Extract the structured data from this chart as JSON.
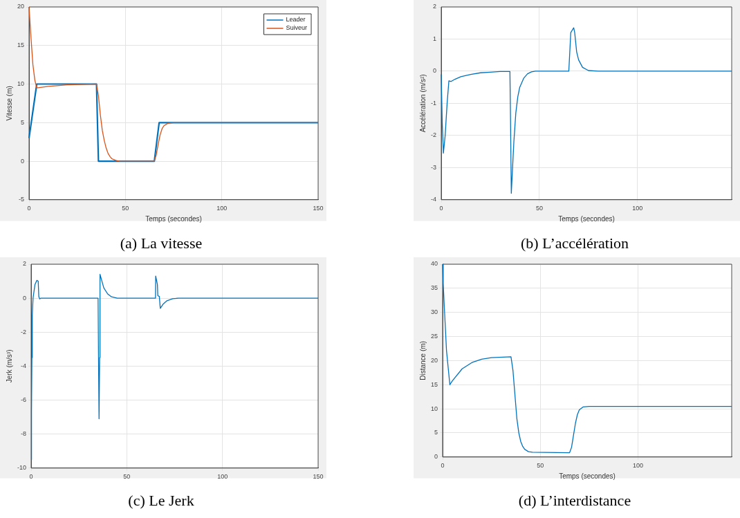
{
  "chart_data": [
    {
      "type": "line",
      "title": "(a) La vitesse",
      "xlabel": "Temps (secondes)",
      "ylabel": "Vitesse (m)",
      "xlim": [
        0,
        150
      ],
      "xticks": [
        0,
        50,
        100,
        150
      ],
      "ylim": [
        -5,
        20
      ],
      "yticks": [
        -5,
        0,
        5,
        10,
        15,
        20
      ],
      "grid": true,
      "legend": "top right",
      "series": [
        {
          "name": "Leader",
          "color": "#0072bd",
          "x": [
            0,
            4,
            35,
            36,
            45,
            65,
            67.5,
            150
          ],
          "values": [
            3,
            10,
            10,
            0,
            0,
            0,
            5,
            5
          ]
        },
        {
          "name": "Suiveur",
          "color": "#d95319",
          "x": [
            0,
            1,
            2,
            3,
            4,
            10,
            20,
            35,
            36,
            37,
            38,
            39,
            40,
            41,
            42,
            43,
            45,
            47,
            65,
            66,
            67,
            68,
            69,
            70,
            72,
            75,
            150
          ],
          "values": [
            20,
            16,
            12.5,
            10.5,
            9.5,
            9.7,
            9.9,
            10,
            8.5,
            6,
            4,
            2.7,
            1.7,
            1,
            0.6,
            0.3,
            0.1,
            0,
            0,
            0.8,
            2.2,
            3.4,
            4.2,
            4.6,
            4.9,
            5,
            5
          ]
        }
      ]
    },
    {
      "type": "line",
      "title": "(b) L’accélération",
      "xlabel": "Temps (secondes)",
      "ylabel": "Accélération (m/s²)",
      "xlim": [
        0,
        148
      ],
      "xticks": [
        0,
        50,
        100
      ],
      "ylim": [
        -4,
        2
      ],
      "yticks": [
        -4,
        -3,
        -2,
        -1,
        0,
        1,
        2
      ],
      "grid": true,
      "series": [
        {
          "color": "#0072bd",
          "x": [
            0,
            0.5,
            1.1,
            2,
            3,
            3.9,
            5,
            7,
            10,
            15,
            20,
            25,
            30,
            35,
            35.3,
            35.7,
            37,
            38,
            39,
            40,
            42,
            44,
            46,
            48,
            65,
            66,
            67.5,
            68,
            69,
            70,
            72,
            75,
            80,
            148
          ],
          "values": [
            -0.1,
            -1.6,
            -2.55,
            -2,
            -1,
            -0.3,
            -0.32,
            -0.25,
            -0.17,
            -0.1,
            -0.05,
            -0.03,
            -0.01,
            -0.01,
            -1.5,
            -3.8,
            -2.2,
            -1.3,
            -0.8,
            -0.5,
            -0.22,
            -0.08,
            -0.02,
            0,
            0,
            1.2,
            1.35,
            1.2,
            0.6,
            0.35,
            0.12,
            0.02,
            0,
            0
          ]
        }
      ]
    },
    {
      "type": "line",
      "title": "(c) Le Jerk",
      "ylabel": "Jerk (m/s³)",
      "xlim": [
        0,
        150
      ],
      "xticks": [
        0,
        50,
        100,
        150
      ],
      "ylim": [
        -10,
        2
      ],
      "yticks": [
        -10,
        -8,
        -6,
        -4,
        -2,
        0,
        2
      ],
      "grid": true,
      "series": [
        {
          "color": "#0072bd",
          "x": [
            0,
            0.2,
            0.4,
            0.6,
            1,
            2,
            3,
            3.7,
            4,
            4.5,
            5,
            35,
            35.2,
            35.5,
            35.8,
            36,
            37,
            38,
            40,
            42,
            45,
            65,
            65.1,
            66,
            66.2,
            67,
            67.5,
            69,
            71,
            74,
            77,
            150
          ],
          "values": [
            -9.5,
            -6.7,
            -3.5,
            -1,
            0,
            0.8,
            1.05,
            1,
            0.1,
            -0.05,
            0,
            0,
            -3.2,
            -7.1,
            -3.5,
            1.4,
            1,
            0.6,
            0.25,
            0.08,
            0,
            0,
            1.3,
            0.8,
            0.15,
            0.1,
            -0.6,
            -0.35,
            -0.15,
            -0.03,
            0,
            0
          ]
        }
      ]
    },
    {
      "type": "line",
      "title": "(d) L’interdistance",
      "xlabel": "Temps (secondes)",
      "ylabel": "Distance (m)",
      "xlim": [
        0,
        148
      ],
      "xticks": [
        0,
        50,
        100
      ],
      "ylim": [
        0,
        40
      ],
      "yticks": [
        0,
        5,
        10,
        15,
        20,
        25,
        30,
        35,
        40
      ],
      "grid": true,
      "series": [
        {
          "color": "#0072bd",
          "x": [
            0,
            0.3,
            1,
            2,
            3.7,
            5,
            10,
            15,
            20,
            25,
            35,
            36,
            37,
            38,
            39,
            40,
            41,
            42,
            44,
            46,
            65,
            66,
            67,
            68,
            69,
            70,
            72,
            75,
            148
          ],
          "values": [
            40,
            36,
            30,
            22,
            15,
            15.8,
            18.3,
            19.6,
            20.3,
            20.6,
            20.8,
            18,
            13,
            8,
            5,
            3.2,
            2.2,
            1.6,
            1.1,
            1,
            0.9,
            2,
            4.5,
            7,
            8.8,
            9.8,
            10.4,
            10.5,
            10.5
          ]
        }
      ]
    }
  ]
}
